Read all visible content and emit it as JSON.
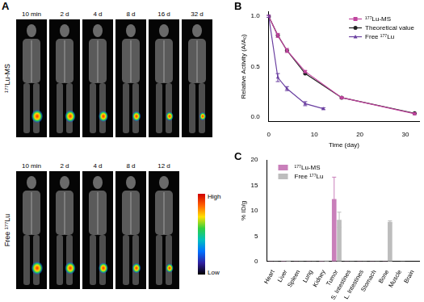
{
  "panel_a": {
    "panel": "A",
    "rows": [
      {
        "label": "¹⁷⁷Lu-MS",
        "times": [
          "10 min",
          "2 d",
          "4 d",
          "8 d",
          "16 d",
          "32 d"
        ]
      },
      {
        "label": "Free ¹⁷⁷Lu",
        "times": [
          "10 min",
          "2 d",
          "4 d",
          "8 d",
          "12 d"
        ]
      }
    ],
    "colorbar": {
      "high": "High",
      "low": "Low"
    }
  },
  "chart_data": [
    {
      "panel": "B",
      "type": "line",
      "x_label": "Time (day)",
      "y_label": "Relative Activity (A/A₀)",
      "xlim": [
        0,
        33
      ],
      "xticks": [
        0,
        10,
        20,
        30
      ],
      "ylim": [
        -0.05,
        1.05
      ],
      "yticks": [
        {
          "value": 0,
          "label": "0.0"
        },
        {
          "value": 0.5,
          "label": "0.5"
        },
        {
          "value": 1,
          "label": "1.0"
        }
      ],
      "grid": false,
      "legend": "upper right",
      "series": [
        {
          "name": "¹⁷⁷Lu-MS",
          "color": "#c0449e",
          "marker": "square",
          "x": [
            0,
            2,
            4,
            8,
            16,
            32
          ],
          "values": [
            1.0,
            0.81,
            0.66,
            0.45,
            0.19,
            0.03
          ],
          "errors": [
            0.01,
            0.02,
            0.02,
            0.01,
            0.01,
            0.01
          ]
        },
        {
          "name": "Theoretical value",
          "color": "#222222",
          "marker": "circle",
          "x": [
            0,
            2,
            4,
            8,
            16,
            32
          ],
          "values": [
            1.0,
            0.81,
            0.66,
            0.43,
            0.19,
            0.035
          ]
        },
        {
          "name": "Free ¹⁷⁷Lu",
          "color": "#6a3fa0",
          "marker": "triangle",
          "x": [
            0,
            2,
            4,
            8,
            12
          ],
          "values": [
            1.0,
            0.39,
            0.28,
            0.13,
            0.08
          ],
          "errors": [
            0.01,
            0.04,
            0.02,
            0.02,
            0.01
          ]
        }
      ]
    },
    {
      "panel": "C",
      "type": "bar",
      "y_label": "% ID/g",
      "categories": [
        "Heart",
        "Liver",
        "Spleen",
        "Lung",
        "Kidney",
        "Tumor",
        "S. Intestines",
        "L. Intestines",
        "Stomach",
        "Bone",
        "Muscle",
        "Brain"
      ],
      "ylim": [
        0,
        20
      ],
      "yticks": [
        0,
        5,
        10,
        15,
        20
      ],
      "grid": false,
      "legend": "upper left",
      "series": [
        {
          "name": "¹⁷⁷Lu-MS",
          "color": "#c97fba",
          "values": [
            0.05,
            0.1,
            0.05,
            0.05,
            0.1,
            12.3,
            0.05,
            0.05,
            0.05,
            0.05,
            0.02,
            0.01
          ],
          "errors": [
            null,
            null,
            null,
            null,
            null,
            4.3,
            null,
            null,
            null,
            null,
            null,
            null
          ]
        },
        {
          "name": "Free ¹⁷⁷Lu",
          "color": "#bdbdbd",
          "values": [
            0.05,
            0.15,
            0.05,
            0.05,
            0.15,
            8.2,
            0.05,
            0.05,
            0.05,
            7.8,
            0.05,
            0.02
          ],
          "errors": [
            null,
            null,
            null,
            null,
            null,
            1.5,
            null,
            null,
            null,
            0.2,
            null,
            null
          ]
        }
      ]
    }
  ]
}
